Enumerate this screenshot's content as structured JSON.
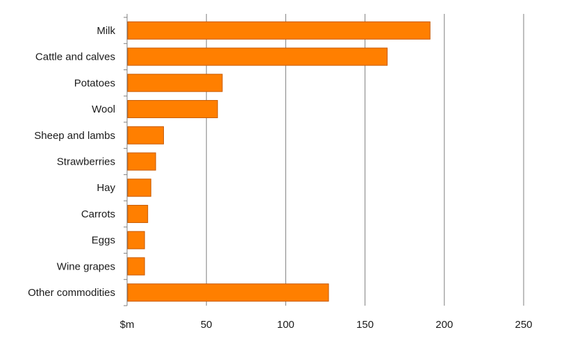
{
  "chart_data": {
    "type": "bar",
    "orientation": "horizontal",
    "title": "",
    "xlabel": "",
    "ylabel": "",
    "categories": [
      "Milk",
      "Cattle and calves",
      "Potatoes",
      "Wool",
      "Sheep and lambs",
      "Strawberries",
      "Hay",
      "Carrots",
      "Eggs",
      "Wine grapes",
      "Other commodities"
    ],
    "values": [
      191,
      164,
      60,
      57,
      23,
      18,
      15,
      13,
      11,
      11,
      127
    ],
    "xlim": [
      0,
      250
    ],
    "x_ticks": [
      0,
      50,
      100,
      150,
      200,
      250
    ],
    "x_tick_labels": [
      "$m",
      "50",
      "100",
      "150",
      "200",
      "250"
    ],
    "grid": "vertical",
    "legend": "none",
    "bar_color": "#ff7f00",
    "bar_edge_color": "#c85a00",
    "grid_color": "#7f7f7f"
  }
}
